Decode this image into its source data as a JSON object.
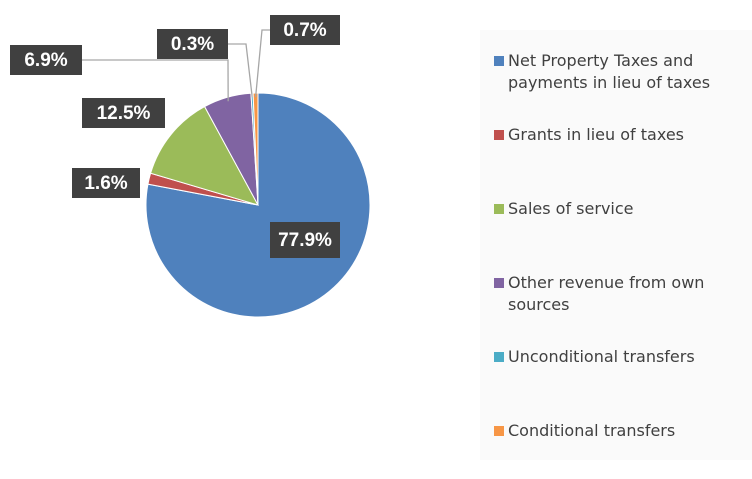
{
  "chart_data": {
    "type": "pie",
    "categories": [
      "Net Property Taxes and payments in lieu of taxes",
      "Grants in lieu of taxes",
      "Sales of service",
      "Other revenue from own sources",
      "Unconditional transfers",
      "Conditional transfers"
    ],
    "values": [
      77.9,
      1.6,
      12.5,
      6.9,
      0.3,
      0.7
    ],
    "value_labels": [
      "77.9%",
      "1.6%",
      "12.5%",
      "6.9%",
      "0.3%",
      "0.7%"
    ],
    "colors": [
      "#4f81bd",
      "#c0504d",
      "#9bbb59",
      "#8064a2",
      "#4bacc6",
      "#f79646"
    ],
    "legend": "right"
  }
}
